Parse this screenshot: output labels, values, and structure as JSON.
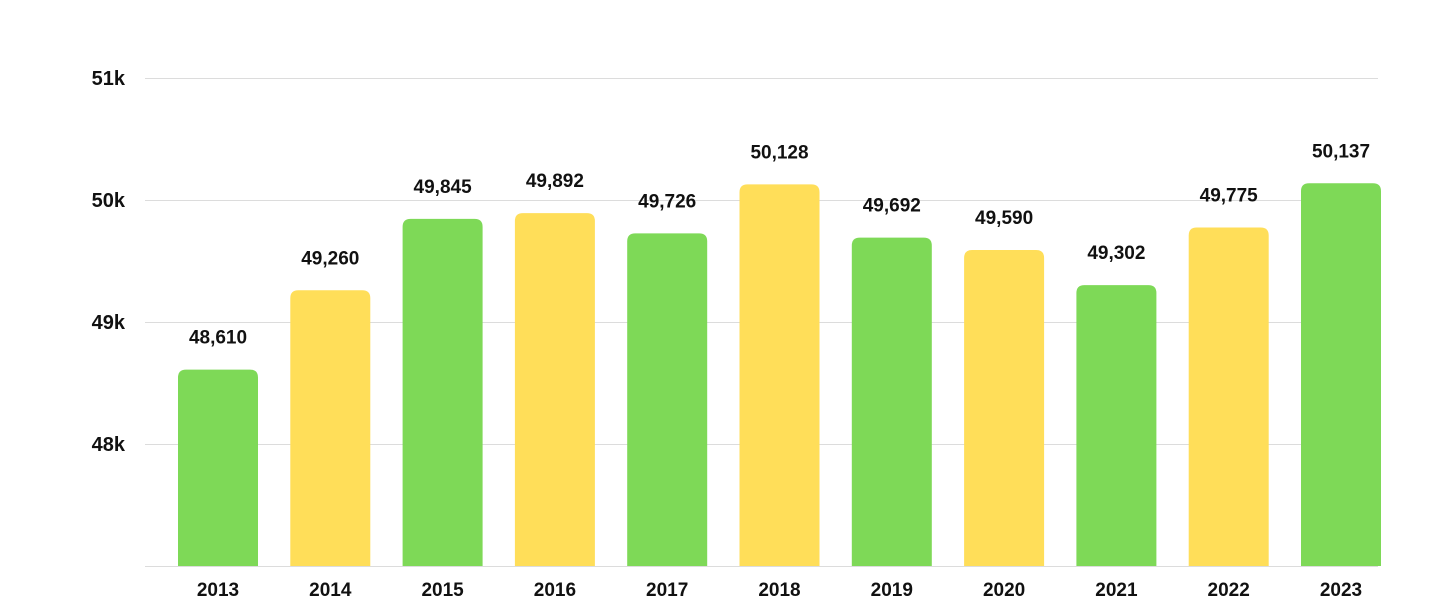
{
  "chart_data": {
    "type": "bar",
    "categories": [
      "2013",
      "2014",
      "2015",
      "2016",
      "2017",
      "2018",
      "2019",
      "2020",
      "2021",
      "2022",
      "2023"
    ],
    "values": [
      48610,
      49260,
      49845,
      49892,
      49726,
      50128,
      49692,
      49590,
      49302,
      49775,
      50137
    ],
    "data_labels": [
      "48,610",
      "49,260",
      "49,845",
      "49,892",
      "49,726",
      "50,128",
      "49,692",
      "49,590",
      "49,302",
      "49,775",
      "50,137"
    ],
    "bar_colors": [
      "#7ed957",
      "#ffde59",
      "#7ed957",
      "#ffde59",
      "#7ed957",
      "#ffde59",
      "#7ed957",
      "#ffde59",
      "#7ed957",
      "#ffde59",
      "#7ed957"
    ],
    "y_ticks": [
      {
        "value": 48000,
        "label": "48k"
      },
      {
        "value": 49000,
        "label": "49k"
      },
      {
        "value": 50000,
        "label": "50k"
      },
      {
        "value": 51000,
        "label": "51k"
      }
    ],
    "ylim": [
      47000,
      51000
    ],
    "grid": true,
    "legend": "none",
    "title": "",
    "xlabel": "",
    "ylabel": ""
  }
}
